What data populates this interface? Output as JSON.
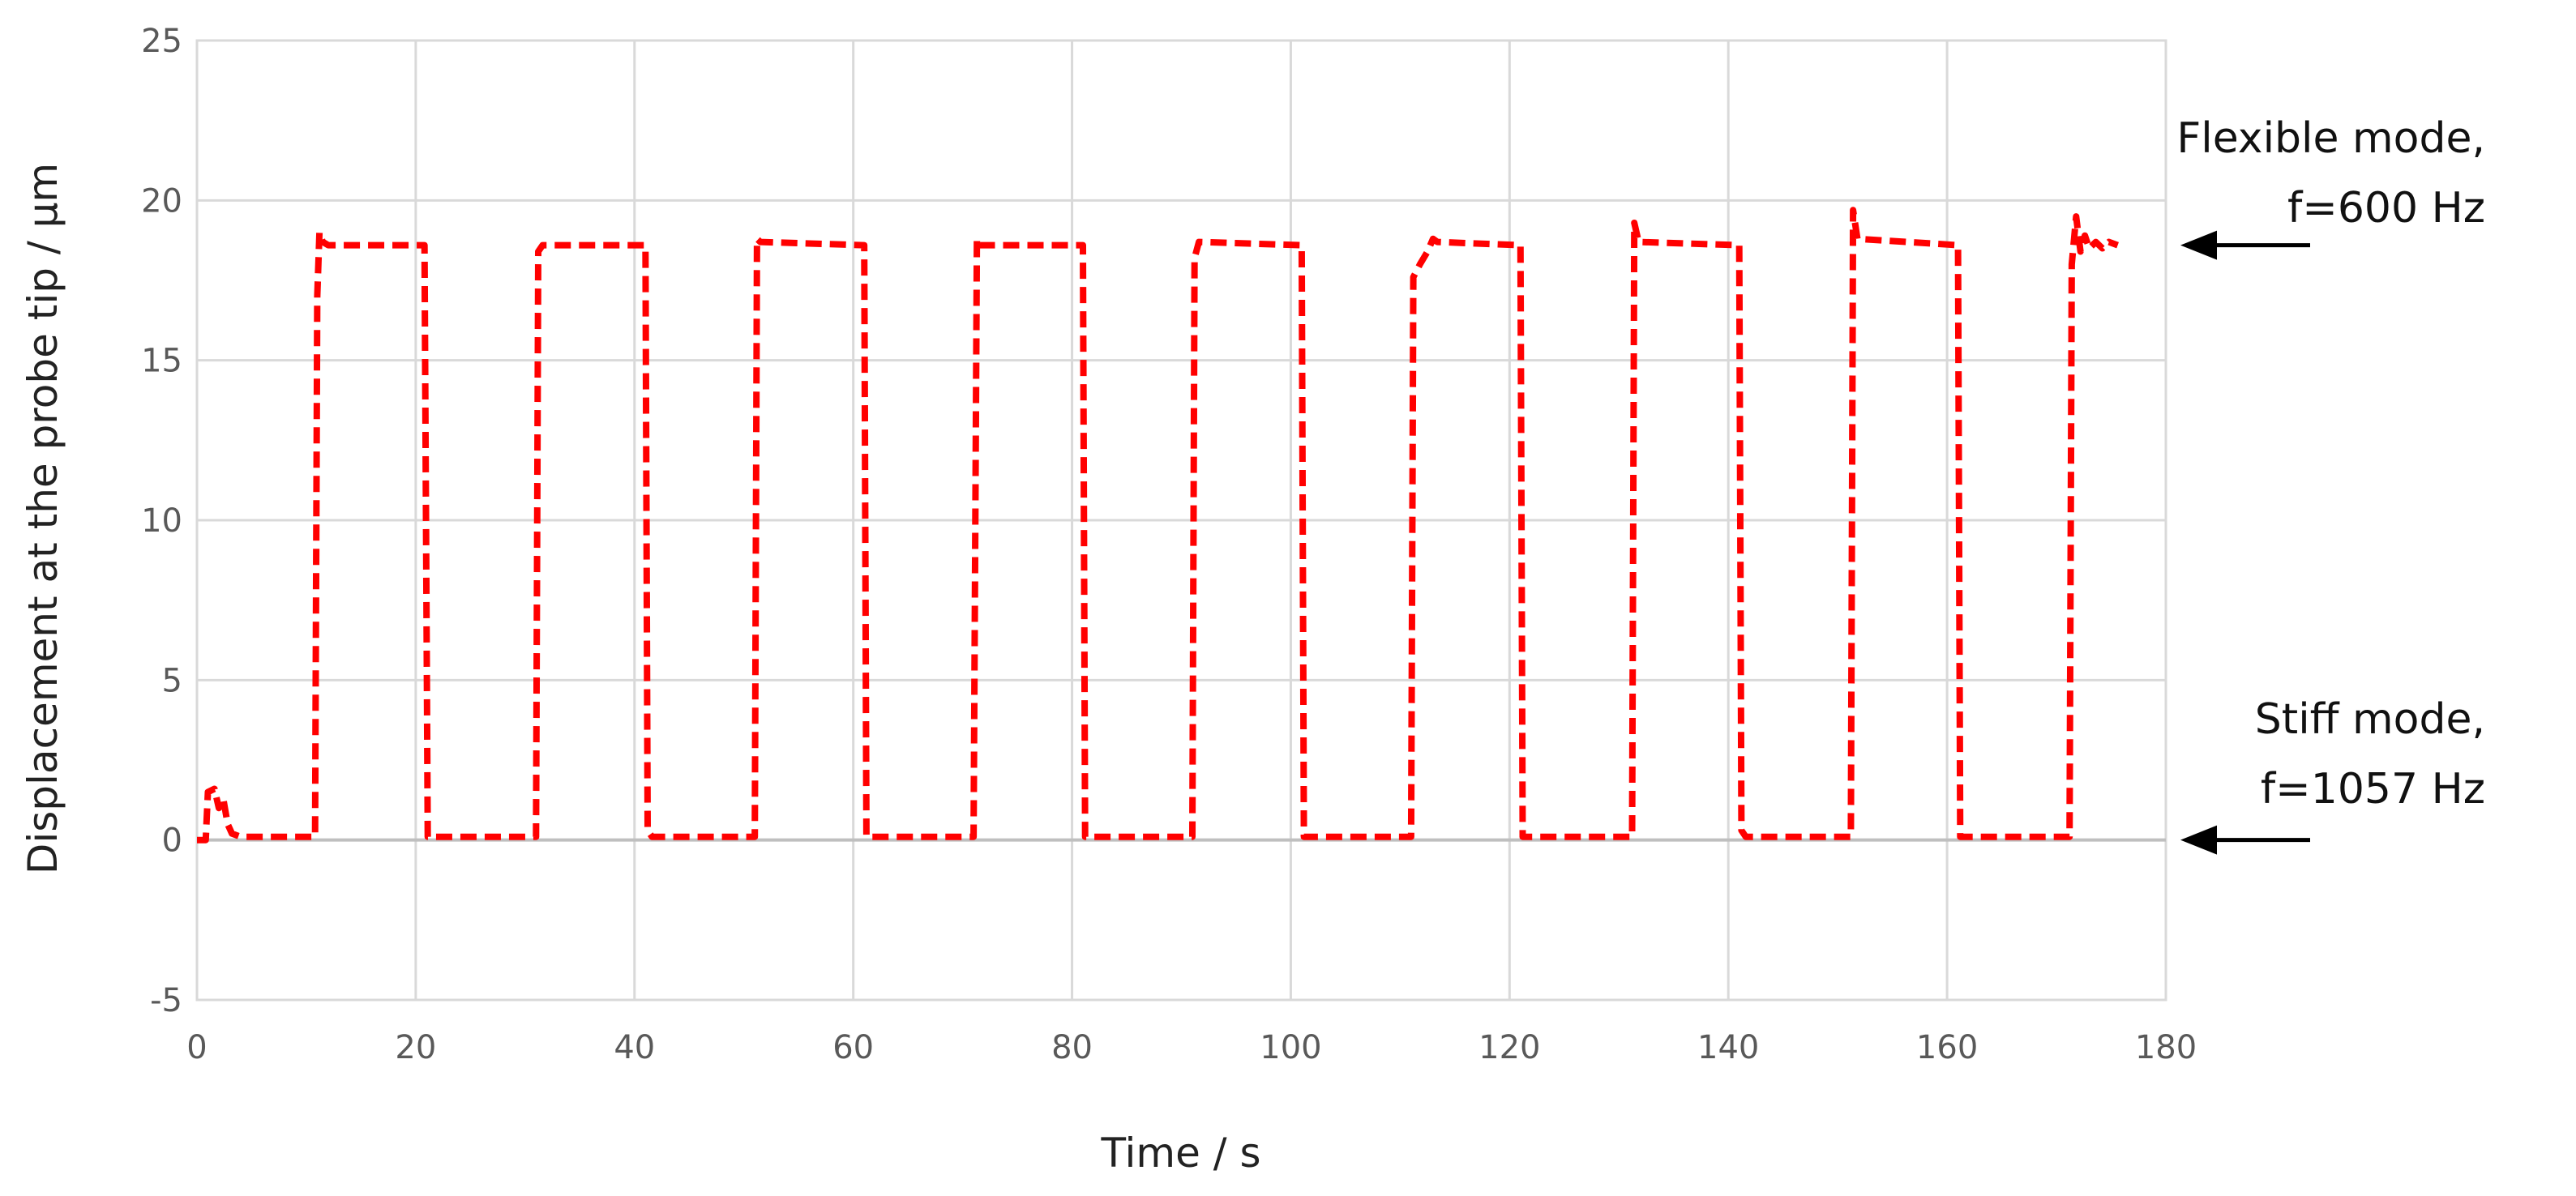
{
  "chart_data": {
    "type": "line",
    "title": "",
    "xlabel": "Time / s",
    "ylabel": "Displacement at the probe tip  / µm",
    "xlim": [
      0,
      180
    ],
    "ylim": [
      -5,
      25
    ],
    "x_ticks": [
      0,
      20,
      40,
      60,
      80,
      100,
      120,
      140,
      160,
      180
    ],
    "y_ticks": [
      -5,
      0,
      5,
      10,
      15,
      20,
      25
    ],
    "grid": true,
    "legend": "none",
    "line_color": "#ff0000",
    "line_style": "dashed",
    "series": [
      {
        "values": [
          [
            0.0,
            0.0
          ],
          [
            0.8,
            0.0
          ],
          [
            1.0,
            1.5
          ],
          [
            1.6,
            1.6
          ],
          [
            2.0,
            1.0
          ],
          [
            2.4,
            1.3
          ],
          [
            2.8,
            0.5
          ],
          [
            3.2,
            0.2
          ],
          [
            4.0,
            0.1
          ],
          [
            10.8,
            0.1
          ],
          [
            11.0,
            17.0
          ],
          [
            11.2,
            19.0
          ],
          [
            11.5,
            18.7
          ],
          [
            12.0,
            18.6
          ],
          [
            20.8,
            18.6
          ],
          [
            21.1,
            0.1
          ],
          [
            31.0,
            0.1
          ],
          [
            31.2,
            18.4
          ],
          [
            31.6,
            18.6
          ],
          [
            41.0,
            18.6
          ],
          [
            41.2,
            0.3
          ],
          [
            41.6,
            0.1
          ],
          [
            51.0,
            0.1
          ],
          [
            51.2,
            18.8
          ],
          [
            51.5,
            18.7
          ],
          [
            61.0,
            18.6
          ],
          [
            61.2,
            0.1
          ],
          [
            71.0,
            0.1
          ],
          [
            71.3,
            18.8
          ],
          [
            71.6,
            18.6
          ],
          [
            81.0,
            18.6
          ],
          [
            81.2,
            0.1
          ],
          [
            91.0,
            0.1
          ],
          [
            91.2,
            18.2
          ],
          [
            91.6,
            18.7
          ],
          [
            101.0,
            18.6
          ],
          [
            101.2,
            0.1
          ],
          [
            111.0,
            0.1
          ],
          [
            111.2,
            17.6
          ],
          [
            111.8,
            18.0
          ],
          [
            112.5,
            18.4
          ],
          [
            113.0,
            18.8
          ],
          [
            113.4,
            18.7
          ],
          [
            121.0,
            18.6
          ],
          [
            121.2,
            0.1
          ],
          [
            131.2,
            0.1
          ],
          [
            131.4,
            19.3
          ],
          [
            131.8,
            18.7
          ],
          [
            141.0,
            18.6
          ],
          [
            141.2,
            0.3
          ],
          [
            141.6,
            0.1
          ],
          [
            151.2,
            0.1
          ],
          [
            151.4,
            19.7
          ],
          [
            151.8,
            18.8
          ],
          [
            161.0,
            18.6
          ],
          [
            161.2,
            0.1
          ],
          [
            171.2,
            0.1
          ],
          [
            171.4,
            18.0
          ],
          [
            171.8,
            19.5
          ],
          [
            172.2,
            18.4
          ],
          [
            172.6,
            18.9
          ],
          [
            173.0,
            18.5
          ],
          [
            173.6,
            18.7
          ],
          [
            174.2,
            18.5
          ],
          [
            174.8,
            18.7
          ],
          [
            175.6,
            18.6
          ]
        ]
      }
    ]
  },
  "annotations": [
    {
      "lines": [
        "Flexible mode,",
        "f=600 Hz"
      ],
      "arrow_y": 18.6
    },
    {
      "lines": [
        "Stiff mode,",
        "f=1057 Hz"
      ],
      "arrow_y": 0
    }
  ]
}
